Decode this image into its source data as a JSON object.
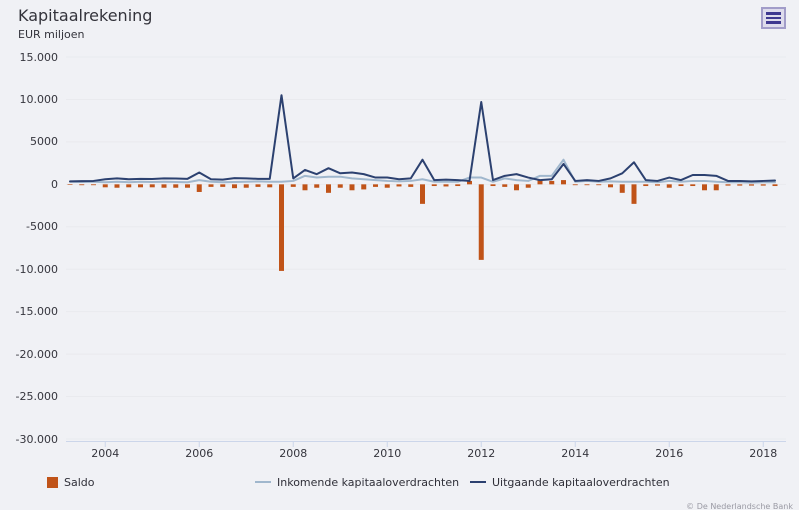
{
  "header": {
    "title": "Kapitaalrekening",
    "subtitle": "EUR miljoen"
  },
  "export_menu": {
    "icon": "hamburger-menu-icon"
  },
  "footer": {
    "attribution": "© De Nederlandsche Bank"
  },
  "chart_data": {
    "type": "combo-bar-line",
    "title": "Kapitaalrekening",
    "ylabel": "EUR miljoen",
    "ylim": [
      -30000,
      15000
    ],
    "grid": true,
    "legend_position": "bottom",
    "colors": {
      "grid": "#e9eaee",
      "axis": "#ccd6ea",
      "background": "#f0f1f5"
    },
    "quarters": [
      "2003Q2",
      "2003Q3",
      "2003Q4",
      "2004Q1",
      "2004Q2",
      "2004Q3",
      "2004Q4",
      "2005Q1",
      "2005Q2",
      "2005Q3",
      "2005Q4",
      "2006Q1",
      "2006Q2",
      "2006Q3",
      "2006Q4",
      "2007Q1",
      "2007Q2",
      "2007Q3",
      "2007Q4",
      "2008Q1",
      "2008Q2",
      "2008Q3",
      "2008Q4",
      "2009Q1",
      "2009Q2",
      "2009Q3",
      "2009Q4",
      "2010Q1",
      "2010Q2",
      "2010Q3",
      "2010Q4",
      "2011Q1",
      "2011Q2",
      "2011Q3",
      "2011Q4",
      "2012Q1",
      "2012Q2",
      "2012Q3",
      "2012Q4",
      "2013Q1",
      "2013Q2",
      "2013Q3",
      "2013Q4",
      "2014Q1",
      "2014Q2",
      "2014Q3",
      "2014Q4",
      "2015Q1",
      "2015Q2",
      "2015Q3",
      "2015Q4",
      "2016Q1",
      "2016Q2",
      "2016Q3",
      "2016Q4",
      "2017Q1",
      "2017Q2",
      "2017Q3",
      "2017Q4",
      "2018Q1",
      "2018Q2"
    ],
    "series": [
      {
        "name": "Saldo",
        "type": "bar",
        "color": "#c05318",
        "values": [
          -50,
          -100,
          -100,
          -350,
          -400,
          -350,
          -350,
          -350,
          -400,
          -400,
          -400,
          -900,
          -300,
          -300,
          -450,
          -400,
          -300,
          -350,
          -10200,
          -300,
          -700,
          -400,
          -1000,
          -400,
          -700,
          -600,
          -300,
          -400,
          -250,
          -300,
          -2300,
          -200,
          -250,
          -200,
          400,
          -8900,
          -200,
          -300,
          -700,
          -400,
          500,
          400,
          500,
          -100,
          -100,
          -100,
          -350,
          -1000,
          -2300,
          -200,
          -150,
          -400,
          -200,
          -200,
          -700,
          -700,
          -150,
          -150,
          -150,
          -150,
          -200
        ]
      },
      {
        "name": "Inkomende kapitaaloverdrachten",
        "type": "line",
        "color": "#a0b7cd",
        "values": [
          300,
          280,
          300,
          250,
          300,
          250,
          300,
          280,
          300,
          280,
          250,
          500,
          300,
          250,
          280,
          300,
          350,
          300,
          300,
          400,
          1000,
          800,
          900,
          900,
          700,
          600,
          500,
          400,
          350,
          400,
          600,
          300,
          300,
          300,
          800,
          800,
          300,
          700,
          500,
          400,
          1000,
          1000,
          2900,
          300,
          400,
          300,
          350,
          300,
          300,
          300,
          250,
          400,
          300,
          400,
          400,
          300,
          250,
          250,
          200,
          250,
          250
        ]
      },
      {
        "name": "Uitgaande kapitaaloverdrachten",
        "type": "line",
        "color": "#2c4170",
        "values": [
          350,
          380,
          400,
          600,
          700,
          600,
          650,
          630,
          700,
          680,
          650,
          1400,
          600,
          550,
          730,
          700,
          650,
          650,
          10500,
          700,
          1700,
          1200,
          1900,
          1300,
          1400,
          1200,
          800,
          800,
          600,
          700,
          2900,
          500,
          550,
          500,
          400,
          9700,
          500,
          1000,
          1200,
          800,
          500,
          600,
          2400,
          400,
          500,
          400,
          700,
          1300,
          2600,
          500,
          400,
          800,
          500,
          1100,
          1100,
          1000,
          400,
          400,
          350,
          400,
          450
        ]
      }
    ],
    "y_ticks": [
      {
        "value": 15000,
        "label": "15.000"
      },
      {
        "value": 10000,
        "label": "10.000"
      },
      {
        "value": 5000,
        "label": "5000"
      },
      {
        "value": 0,
        "label": "0"
      },
      {
        "value": -5000,
        "label": "-5000"
      },
      {
        "value": -10000,
        "label": "-10.000"
      },
      {
        "value": -15000,
        "label": "-15.000"
      },
      {
        "value": -20000,
        "label": "-20.000"
      },
      {
        "value": -25000,
        "label": "-25.000"
      },
      {
        "value": -30000,
        "label": "-30.000"
      }
    ],
    "x_ticks": [
      {
        "value": 2004,
        "label": "2004"
      },
      {
        "value": 2006,
        "label": "2006"
      },
      {
        "value": 2008,
        "label": "2008"
      },
      {
        "value": 2010,
        "label": "2010"
      },
      {
        "value": 2012,
        "label": "2012"
      },
      {
        "value": 2014,
        "label": "2014"
      },
      {
        "value": 2016,
        "label": "2016"
      },
      {
        "value": 2018,
        "label": "2018"
      }
    ]
  }
}
